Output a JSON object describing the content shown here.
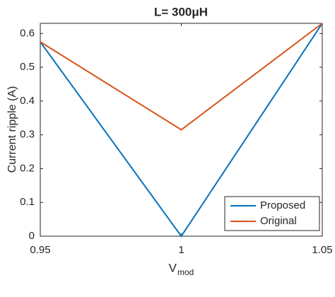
{
  "chart_data": {
    "type": "line",
    "title": "L= 300μH",
    "x_label": "V",
    "x_label_sub": "mod",
    "y_label": "Current ripple (A)",
    "x": [
      0.95,
      1,
      1.05
    ],
    "series": [
      {
        "name": "Proposed",
        "color": "#0072bd",
        "values": [
          0.575,
          0,
          0.63
        ]
      },
      {
        "name": "Original",
        "color": "#d95319",
        "values": [
          0.575,
          0.315,
          0.63
        ]
      }
    ],
    "xlim": [
      0.95,
      1.05
    ],
    "xticks": [
      0.95,
      1,
      1.05
    ],
    "ylim": [
      0,
      0.63
    ],
    "yticks": [
      0,
      0.1,
      0.2,
      0.3,
      0.4,
      0.5,
      0.6
    ],
    "grid": false,
    "legend": "lower right"
  }
}
